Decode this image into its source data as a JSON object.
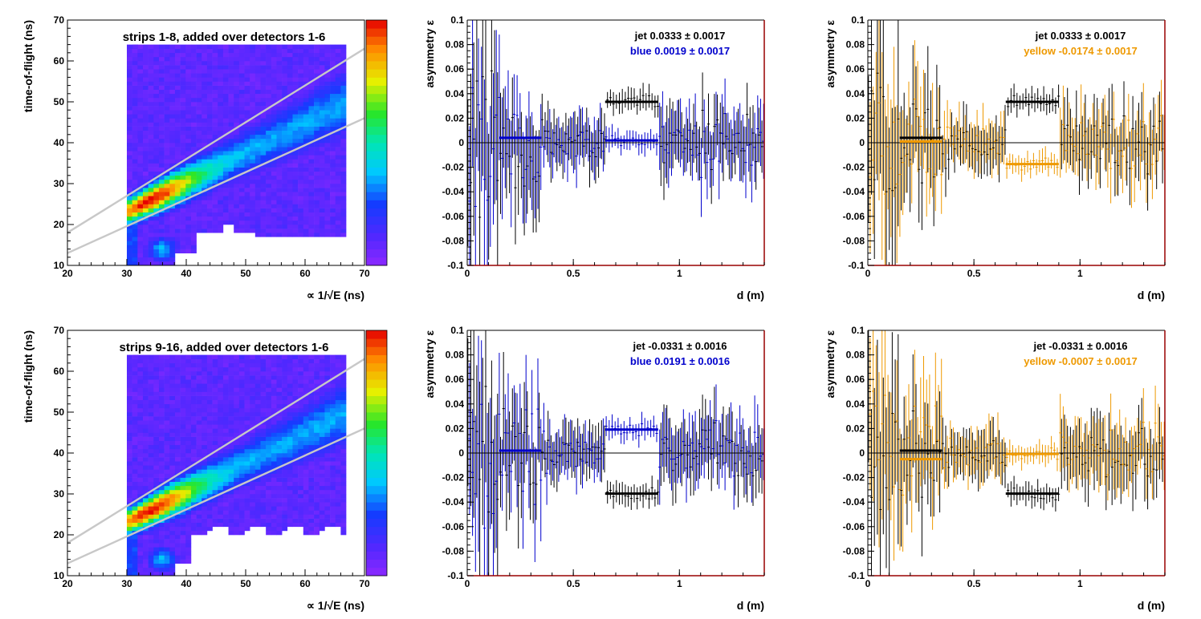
{
  "figure": {
    "colors": {
      "frame": "#000000",
      "axis_right": "#990000",
      "blue": "#0000cc",
      "yellow": "#ee9900",
      "black": "#000000",
      "band": "#c8c8c8",
      "zero_line": "#000000"
    }
  },
  "chart_data": [
    {
      "type": "heatmap",
      "id": "tof_top",
      "title": "strips 1-8, added over detectors 1-6",
      "xlabel": "∝ 1/√E (ns)",
      "ylabel": "time-of-flight (ns)",
      "xlim": [
        20,
        70
      ],
      "ylim": [
        10,
        70
      ],
      "xticks": [
        "20",
        "30",
        "40",
        "50",
        "60",
        "70"
      ],
      "yticks": [
        "10",
        "20",
        "30",
        "40",
        "50",
        "60",
        "70"
      ],
      "band_lines": [
        {
          "x": [
            20,
            70
          ],
          "y": [
            18,
            63
          ]
        },
        {
          "x": [
            20,
            70
          ],
          "y": [
            13,
            46
          ]
        }
      ],
      "peak": {
        "x": 34,
        "y": 26
      },
      "colorbar": "rainbow"
    },
    {
      "type": "scatter",
      "id": "asym_blue_top",
      "ylabel": "asymmetry ε",
      "xlabel": "d (m)",
      "xlim": [
        0,
        1.4
      ],
      "ylim": [
        -0.1,
        0.1
      ],
      "xticks": [
        "0",
        "0.5",
        "1"
      ],
      "yticks": [
        "0.1",
        "0.08",
        "0.06",
        "0.04",
        "0.02",
        "0",
        "-0.02",
        "-0.04",
        "-0.06",
        "-0.08",
        "-0.1"
      ],
      "legend": [
        {
          "text": "jet  0.0333 ± 0.0017",
          "color": "#000000"
        },
        {
          "text": "blue  0.0019 ± 0.0017",
          "color": "#0000cc"
        }
      ],
      "series": [
        {
          "name": "jet",
          "color": "#000000",
          "mean": 0.0333,
          "fit_range": [
            0.65,
            0.9
          ]
        },
        {
          "name": "blue",
          "color": "#0000cc",
          "mean": 0.0019,
          "fit_range": [
            0.65,
            0.9
          ],
          "mean_left": 0.004,
          "fit_range_left": [
            0.15,
            0.35
          ]
        }
      ]
    },
    {
      "type": "scatter",
      "id": "asym_yellow_top",
      "ylabel": "asymmetry ε",
      "xlabel": "d (m)",
      "xlim": [
        0,
        1.4
      ],
      "ylim": [
        -0.1,
        0.1
      ],
      "xticks": [
        "0",
        "0.5",
        "1"
      ],
      "yticks": [
        "0.1",
        "0.08",
        "0.06",
        "0.04",
        "0.02",
        "0",
        "-0.02",
        "-0.04",
        "-0.06",
        "-0.08",
        "-0.1"
      ],
      "legend": [
        {
          "text": "jet  0.0333 ± 0.0017",
          "color": "#000000"
        },
        {
          "text": "yellow -0.0174 ± 0.0017",
          "color": "#ee9900"
        }
      ],
      "series": [
        {
          "name": "jet",
          "color": "#000000",
          "mean": 0.0333,
          "fit_range": [
            0.65,
            0.9
          ],
          "mean_left": 0.004,
          "fit_range_left": [
            0.15,
            0.35
          ]
        },
        {
          "name": "yellow",
          "color": "#ee9900",
          "mean": -0.0174,
          "fit_range": [
            0.65,
            0.9
          ],
          "mean_left": 0.001,
          "fit_range_left": [
            0.15,
            0.35
          ]
        }
      ]
    },
    {
      "type": "heatmap",
      "id": "tof_bottom",
      "title": "strips 9-16, added over detectors 1-6",
      "xlabel": "∝ 1/√E (ns)",
      "ylabel": "time-of-flight (ns)",
      "xlim": [
        20,
        70
      ],
      "ylim": [
        10,
        70
      ],
      "xticks": [
        "20",
        "30",
        "40",
        "50",
        "60",
        "70"
      ],
      "yticks": [
        "10",
        "20",
        "30",
        "40",
        "50",
        "60",
        "70"
      ],
      "band_lines": [
        {
          "x": [
            20,
            70
          ],
          "y": [
            18,
            63
          ]
        },
        {
          "x": [
            20,
            70
          ],
          "y": [
            13,
            46
          ]
        }
      ],
      "peak": {
        "x": 34,
        "y": 25
      },
      "colorbar": "rainbow"
    },
    {
      "type": "scatter",
      "id": "asym_blue_bottom",
      "ylabel": "asymmetry ε",
      "xlabel": "d (m)",
      "xlim": [
        0,
        1.4
      ],
      "ylim": [
        -0.1,
        0.1
      ],
      "xticks": [
        "0",
        "0.5",
        "1"
      ],
      "yticks": [
        "0.1",
        "0.08",
        "0.06",
        "0.04",
        "0.02",
        "0",
        "-0.02",
        "-0.04",
        "-0.06",
        "-0.08",
        "-0.1"
      ],
      "legend": [
        {
          "text": "jet -0.0331 ± 0.0016",
          "color": "#000000"
        },
        {
          "text": "blue  0.0191 ± 0.0016",
          "color": "#0000cc"
        }
      ],
      "series": [
        {
          "name": "jet",
          "color": "#000000",
          "mean": -0.0331,
          "fit_range": [
            0.65,
            0.9
          ]
        },
        {
          "name": "blue",
          "color": "#0000cc",
          "mean": 0.0191,
          "fit_range": [
            0.65,
            0.9
          ],
          "mean_left": 0.002,
          "fit_range_left": [
            0.15,
            0.35
          ]
        }
      ]
    },
    {
      "type": "scatter",
      "id": "asym_yellow_bottom",
      "ylabel": "asymmetry ε",
      "xlabel": "d (m)",
      "xlim": [
        0,
        1.4
      ],
      "ylim": [
        -0.1,
        0.1
      ],
      "xticks": [
        "0",
        "0.5",
        "1"
      ],
      "yticks": [
        "0.1",
        "0.08",
        "0.06",
        "0.04",
        "0.02",
        "0",
        "-0.02",
        "-0.04",
        "-0.06",
        "-0.08",
        "-0.1"
      ],
      "legend": [
        {
          "text": "jet -0.0331 ± 0.0016",
          "color": "#000000"
        },
        {
          "text": "yellow -0.0007 ± 0.0017",
          "color": "#ee9900"
        }
      ],
      "series": [
        {
          "name": "jet",
          "color": "#000000",
          "mean": -0.0331,
          "fit_range": [
            0.65,
            0.9
          ],
          "mean_left": 0.002,
          "fit_range_left": [
            0.15,
            0.35
          ]
        },
        {
          "name": "yellow",
          "color": "#ee9900",
          "mean": -0.0007,
          "fit_range": [
            0.65,
            0.9
          ],
          "mean_left": -0.005,
          "fit_range_left": [
            0.15,
            0.35
          ]
        }
      ]
    }
  ]
}
